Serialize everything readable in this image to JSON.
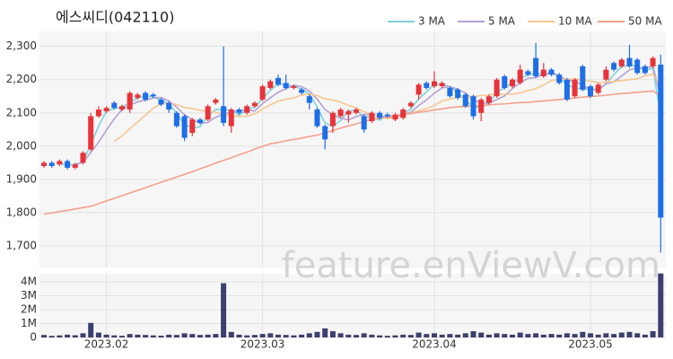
{
  "chart_data": [
    {
      "type": "candlestick",
      "title": "에스씨디(042110)",
      "watermark": "feature.enViewV.com",
      "up_color": "#e8333a",
      "down_color": "#1e6ee8",
      "grid": true,
      "legend": "top-right",
      "ylim": [
        1635,
        2345
      ],
      "yticks": [
        {
          "value": 1700,
          "label": "1,700"
        },
        {
          "value": 1800,
          "label": "1,800"
        },
        {
          "value": 1900,
          "label": "1,900"
        },
        {
          "value": 2000,
          "label": "2,000"
        },
        {
          "value": 2100,
          "label": "2,100"
        },
        {
          "value": 2200,
          "label": "2,200"
        },
        {
          "value": 2300,
          "label": "2,300"
        }
      ],
      "open": [
        1940,
        1950,
        1945,
        1955,
        1935,
        1950,
        1990,
        2090,
        2105,
        2130,
        2110,
        2110,
        2145,
        2160,
        2155,
        2140,
        2130,
        2100,
        2090,
        2040,
        2080,
        2080,
        2130,
        2120,
        2060,
        2110,
        2100,
        2120,
        2140,
        2175,
        2205,
        2190,
        2175,
        2170,
        2150,
        2110,
        2060,
        2060,
        2090,
        2095,
        2100,
        2090,
        2075,
        2100,
        2095,
        2080,
        2085,
        2120,
        2155,
        2190,
        2180,
        2180,
        2175,
        2170,
        2155,
        2150,
        2100,
        2130,
        2150,
        2210,
        2180,
        2190,
        2225,
        2265,
        2210,
        2230,
        2215,
        2200,
        2150,
        2240,
        2180,
        2160,
        2200,
        2250,
        2240,
        2265,
        2260,
        2240,
        2240,
        2245
      ],
      "high": [
        1955,
        1955,
        1960,
        1960,
        1950,
        1985,
        2100,
        2120,
        2120,
        2135,
        2125,
        2165,
        2160,
        2165,
        2160,
        2145,
        2135,
        2105,
        2095,
        2085,
        2085,
        2125,
        2145,
        2300,
        2115,
        2115,
        2125,
        2135,
        2185,
        2200,
        2215,
        2215,
        2185,
        2175,
        2155,
        2115,
        2065,
        2105,
        2115,
        2110,
        2115,
        2095,
        2105,
        2105,
        2100,
        2100,
        2115,
        2135,
        2190,
        2195,
        2225,
        2195,
        2180,
        2175,
        2160,
        2155,
        2145,
        2155,
        2205,
        2215,
        2205,
        2245,
        2230,
        2310,
        2250,
        2235,
        2220,
        2205,
        2205,
        2245,
        2185,
        2190,
        2240,
        2255,
        2265,
        2305,
        2265,
        2245,
        2270,
        2275
      ],
      "low": [
        1935,
        1935,
        1940,
        1930,
        1930,
        1945,
        1985,
        2085,
        2100,
        2110,
        2105,
        2100,
        2140,
        2135,
        2145,
        2120,
        2100,
        2055,
        2015,
        2030,
        2065,
        2075,
        2125,
        2060,
        2040,
        2095,
        2095,
        2115,
        2135,
        2170,
        2180,
        2170,
        2170,
        2155,
        2110,
        2055,
        1990,
        2040,
        2085,
        2070,
        2095,
        2040,
        2070,
        2080,
        2085,
        2075,
        2080,
        2115,
        2140,
        2170,
        2175,
        2175,
        2145,
        2140,
        2115,
        2080,
        2075,
        2125,
        2145,
        2170,
        2175,
        2185,
        2210,
        2205,
        2205,
        2210,
        2185,
        2135,
        2145,
        2165,
        2145,
        2155,
        2195,
        2225,
        2235,
        2235,
        2215,
        2215,
        2235,
        1680
      ],
      "close": [
        1950,
        1940,
        1955,
        1935,
        1945,
        1980,
        2090,
        2110,
        2115,
        2115,
        2120,
        2160,
        2155,
        2140,
        2150,
        2125,
        2110,
        2060,
        2025,
        2080,
        2070,
        2120,
        2140,
        2070,
        2110,
        2100,
        2120,
        2130,
        2180,
        2195,
        2185,
        2175,
        2180,
        2160,
        2130,
        2060,
        2020,
        2100,
        2110,
        2105,
        2110,
        2050,
        2100,
        2085,
        2090,
        2095,
        2110,
        2130,
        2185,
        2175,
        2195,
        2190,
        2150,
        2145,
        2120,
        2090,
        2140,
        2150,
        2200,
        2175,
        2200,
        2230,
        2215,
        2210,
        2230,
        2215,
        2190,
        2140,
        2200,
        2170,
        2150,
        2185,
        2230,
        2230,
        2260,
        2240,
        2220,
        2220,
        2265,
        1785
      ],
      "series": [
        {
          "name": "3 MA",
          "color": "#7fd3d8",
          "values": [
            null,
            null,
            1948,
            1943,
            1945,
            1953,
            2005,
            2060,
            2105,
            2113,
            2117,
            2132,
            2145,
            2152,
            2148,
            2138,
            2128,
            2098,
            2065,
            2055,
            2058,
            2090,
            2110,
            2110,
            2107,
            2093,
            2110,
            2117,
            2143,
            2168,
            2187,
            2185,
            2180,
            2172,
            2157,
            2117,
            2070,
            2060,
            2077,
            2105,
            2108,
            2088,
            2087,
            2078,
            2092,
            2090,
            2098,
            2112,
            2142,
            2163,
            2185,
            2187,
            2178,
            2162,
            2138,
            2118,
            2117,
            2127,
            2163,
            2175,
            2192,
            2202,
            2215,
            2218,
            2218,
            2218,
            2212,
            2182,
            2177,
            2170,
            2173,
            2168,
            2188,
            2215,
            2240,
            2243,
            2240,
            2227,
            2235,
            2090
          ]
        },
        {
          "name": "5 MA",
          "color": "#b4a0d6",
          "values": [
            null,
            null,
            null,
            null,
            1945,
            1951,
            1981,
            2012,
            2048,
            2082,
            2110,
            2124,
            2133,
            2138,
            2145,
            2146,
            2136,
            2117,
            2094,
            2080,
            2069,
            2071,
            2087,
            2096,
            2102,
            2108,
            2108,
            2106,
            2128,
            2145,
            2162,
            2173,
            2183,
            2179,
            2166,
            2141,
            2110,
            2094,
            2084,
            2079,
            2089,
            2095,
            2095,
            2090,
            2087,
            2084,
            2096,
            2102,
            2122,
            2139,
            2159,
            2175,
            2179,
            2171,
            2160,
            2139,
            2129,
            2129,
            2140,
            2151,
            2173,
            2191,
            2204,
            2206,
            2217,
            2220,
            2212,
            2197,
            2195,
            2183,
            2170,
            2169,
            2187,
            2193,
            2211,
            2229,
            2236,
            2234,
            2241,
            2146
          ]
        },
        {
          "name": "10 MA",
          "color": "#f5c78f",
          "values": [
            null,
            null,
            null,
            null,
            null,
            null,
            null,
            null,
            null,
            2014,
            2031,
            2053,
            2073,
            2093,
            2114,
            2128,
            2130,
            2125,
            2116,
            2113,
            2108,
            2104,
            2102,
            2095,
            2091,
            2089,
            2090,
            2097,
            2112,
            2124,
            2135,
            2141,
            2145,
            2154,
            2156,
            2152,
            2142,
            2139,
            2132,
            2123,
            2115,
            2103,
            2095,
            2087,
            2083,
            2087,
            2096,
            2099,
            2106,
            2113,
            2122,
            2136,
            2141,
            2147,
            2150,
            2149,
            2152,
            2154,
            2156,
            2156,
            2156,
            2160,
            2167,
            2173,
            2184,
            2197,
            2202,
            2201,
            2201,
            2200,
            2195,
            2191,
            2192,
            2194,
            2197,
            2200,
            2203,
            2211,
            2217,
            2179
          ]
        },
        {
          "name": "50 MA",
          "color": "#f4a08c",
          "values": [
            1795,
            1799,
            1803,
            1807,
            1811,
            1815,
            1819,
            1827,
            1835,
            1843,
            1851,
            1859,
            1867,
            1875,
            1883,
            1891,
            1899,
            1907,
            1915,
            1923,
            1932,
            1940,
            1949,
            1957,
            1965,
            1974,
            1982,
            1991,
            1999,
            2007,
            2011,
            2016,
            2020,
            2024,
            2029,
            2033,
            2040,
            2047,
            2054,
            2061,
            2067,
            2074,
            2080,
            2084,
            2087,
            2091,
            2094,
            2098,
            2102,
            2105,
            2109,
            2112,
            2116,
            2118,
            2119,
            2121,
            2122,
            2124,
            2126,
            2127,
            2129,
            2131,
            2132,
            2134,
            2136,
            2138,
            2140,
            2142,
            2145,
            2147,
            2149,
            2151,
            2153,
            2156,
            2158,
            2160,
            2162,
            2164,
            2166,
            2150
          ]
        }
      ]
    },
    {
      "type": "bar",
      "color": "#3d3f6e",
      "grid": true,
      "ylim": [
        0,
        4580000
      ],
      "yticks": [
        0,
        {
          "value": 1000000,
          "label": "1M"
        },
        {
          "value": 2000000,
          "label": "2M"
        },
        {
          "value": 3000000,
          "label": "3M"
        },
        {
          "value": 4000000,
          "label": "4M"
        }
      ],
      "categories": [
        null,
        null,
        null,
        null,
        null,
        null,
        null,
        null,
        "2023.02",
        null,
        null,
        null,
        null,
        null,
        null,
        null,
        null,
        null,
        null,
        null,
        null,
        null,
        null,
        null,
        null,
        null,
        null,
        null,
        "2023.03",
        null,
        null,
        null,
        null,
        null,
        null,
        null,
        null,
        null,
        null,
        null,
        null,
        null,
        null,
        null,
        null,
        null,
        null,
        null,
        null,
        null,
        "2023.04",
        null,
        null,
        null,
        null,
        null,
        null,
        null,
        null,
        null,
        null,
        null,
        null,
        null,
        null,
        null,
        null,
        null,
        null,
        null,
        "2023.05",
        null,
        null,
        null,
        null,
        null,
        null,
        null,
        null,
        null
      ],
      "values": [
        180000,
        120000,
        150000,
        200000,
        160000,
        300000,
        1050000,
        350000,
        200000,
        150000,
        120000,
        250000,
        200000,
        180000,
        150000,
        130000,
        200000,
        180000,
        300000,
        250000,
        180000,
        200000,
        250000,
        3900000,
        400000,
        200000,
        150000,
        180000,
        250000,
        300000,
        200000,
        180000,
        150000,
        200000,
        300000,
        400000,
        650000,
        450000,
        300000,
        200000,
        180000,
        300000,
        200000,
        150000,
        120000,
        150000,
        200000,
        180000,
        350000,
        250000,
        300000,
        200000,
        250000,
        200000,
        300000,
        450000,
        350000,
        200000,
        300000,
        250000,
        200000,
        350000,
        250000,
        300000,
        200000,
        250000,
        200000,
        300000,
        250000,
        400000,
        300000,
        200000,
        300000,
        250000,
        350000,
        400000,
        300000,
        200000,
        450000,
        4600000
      ]
    }
  ]
}
